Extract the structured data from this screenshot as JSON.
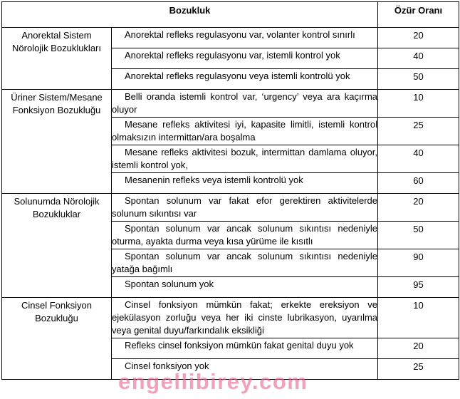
{
  "header": {
    "col1": "Bozukluk",
    "col2": "Özür Oranı"
  },
  "groups": [
    {
      "name": "Anorektal Sistem Nörolojik Bozuklukları",
      "rows": [
        {
          "text": "Anorektal refleks regulasyonu var, volanter kontrol sınırlı",
          "rate": 20
        },
        {
          "text": "Anorektal refleks regulasyonu var, istemli kontrol yok",
          "rate": 40
        },
        {
          "text": "Anorektal refleks regulasyonu veya istemli kontrolü yok",
          "rate": 50
        }
      ]
    },
    {
      "name": "Üriner Sistem/Mesane Fonksiyon Bozukluğu",
      "rows": [
        {
          "text": "Belli oranda istemli kontrol var, ‘urgency’ veya ara kaçırma oluyor",
          "rate": 10
        },
        {
          "text": "Mesane refleks aktivitesi iyi, kapasite limitli, istemli kontrol olmaksızın intermittan/ara boşalma",
          "rate": 25
        },
        {
          "text": "Mesane refleks aktivitesi bozuk, intermittan damlama oluyor, istemli kontrol yok,",
          "rate": 40
        },
        {
          "text": "Mesanenin refleks veya istemli kontrolü yok",
          "rate": 60
        }
      ]
    },
    {
      "name": "Solunumda Nörolojik Bozukluklar",
      "rows": [
        {
          "text": "Spontan solunum var fakat efor gerektiren aktivitelerde solunum sıkıntısı var",
          "rate": 20
        },
        {
          "text": "Spontan solunum var ancak solunum sıkıntısı nedeniyle oturma, ayakta durma veya kısa yürüme ile kısıtlı",
          "rate": 50
        },
        {
          "text": "Spontan solunum var ancak solunum sıkıntısı nedeniyle yatağa bağımlı",
          "rate": 90
        },
        {
          "text": "Spontan solunum yok",
          "rate": 95
        }
      ]
    },
    {
      "name": "Cinsel Fonksiyon Bozukluğu",
      "rows": [
        {
          "text": "Cinsel fonksiyon mümkün fakat; erkekte ereksiyon ve ejekülasyon zorluğu veya her iki cinste lubrikasyon, uyarılma veya genital duyu/farkındalık eksikliği",
          "rate": 10
        },
        {
          "text": "Refleks cinsel fonksiyon mümkün fakat genital duyu yok",
          "rate": 20
        },
        {
          "text": "Cinsel fonksiyon yok",
          "rate": 25
        }
      ]
    }
  ],
  "watermark": "engellibirey.com"
}
